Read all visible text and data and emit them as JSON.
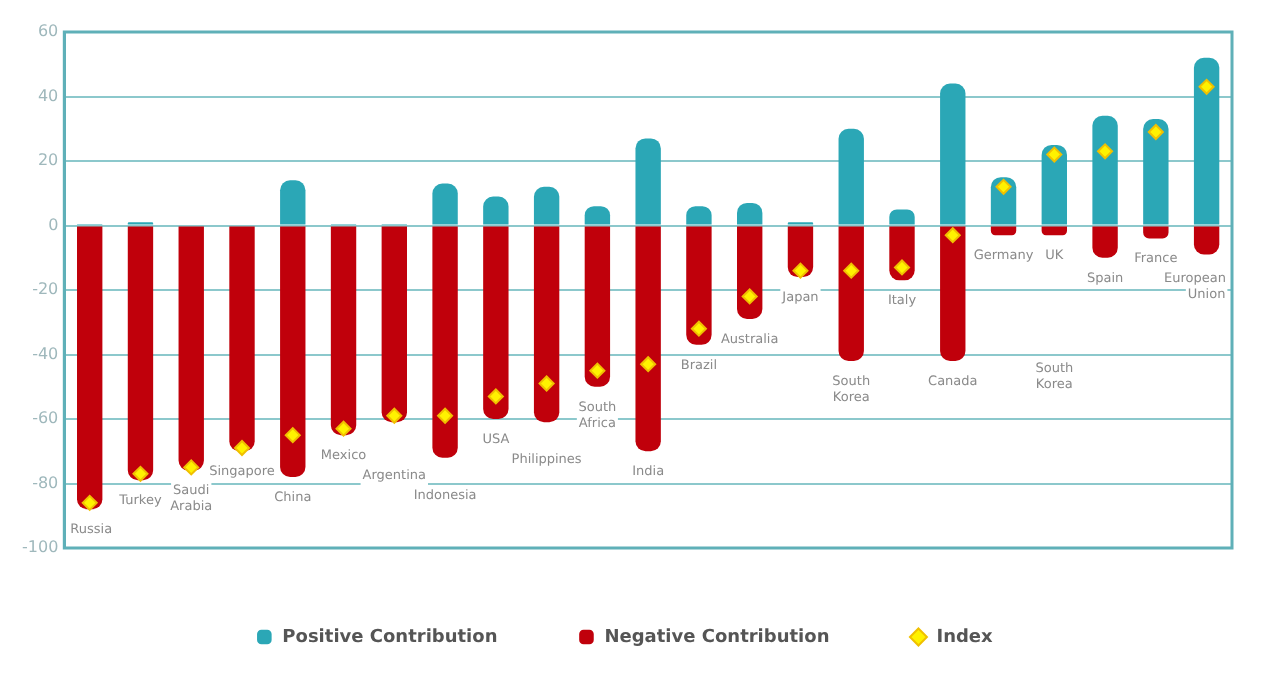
{
  "chart_data": {
    "type": "bar",
    "stacked": true,
    "categories": [
      "Russia",
      "Turkey",
      "Saudi Arabia",
      "Singapore",
      "China",
      "Mexico",
      "Argentina",
      "Indonesia",
      "USA",
      "Philippines",
      "South Africa",
      "India",
      "Brazil",
      "Australia",
      "Japan",
      "South Korea",
      "Italy",
      "Canada",
      "Germany",
      "UK",
      "Spain",
      "France",
      "European Union"
    ],
    "series": [
      {
        "name": "Positive Contribution",
        "color": "#2ba7b6",
        "values": [
          0.5,
          1,
          0,
          0,
          14,
          0.5,
          0.5,
          13,
          9,
          12,
          6,
          27,
          6,
          7,
          1,
          30,
          5,
          44,
          15,
          25,
          34,
          33,
          52
        ]
      },
      {
        "name": "Negative Contribution",
        "color": "#c0000b",
        "values": [
          -88,
          -79,
          -76,
          -70,
          -78,
          -65,
          -61,
          -72,
          -60,
          -61,
          -50,
          -70,
          -37,
          -29,
          -16,
          -42,
          -17,
          -42,
          -3,
          -3,
          -10,
          -4,
          -9
        ]
      },
      {
        "name": "Index",
        "type": "scatter",
        "color": "#fff200",
        "marker": "diamond",
        "values": [
          -86,
          -77,
          -75,
          -69,
          -65,
          -63,
          -59,
          -59,
          -53,
          -49,
          -45,
          -43,
          -32,
          -22,
          -14,
          -14,
          -13,
          -3,
          12,
          22,
          23,
          29,
          43
        ]
      }
    ],
    "ylim": [
      -100,
      60
    ],
    "yticks": [
      -100,
      -80,
      -60,
      -40,
      -20,
      0,
      20,
      40,
      60
    ],
    "grid": "y",
    "legend": "bottom",
    "annotations": [
      "South Korea"
    ]
  }
}
